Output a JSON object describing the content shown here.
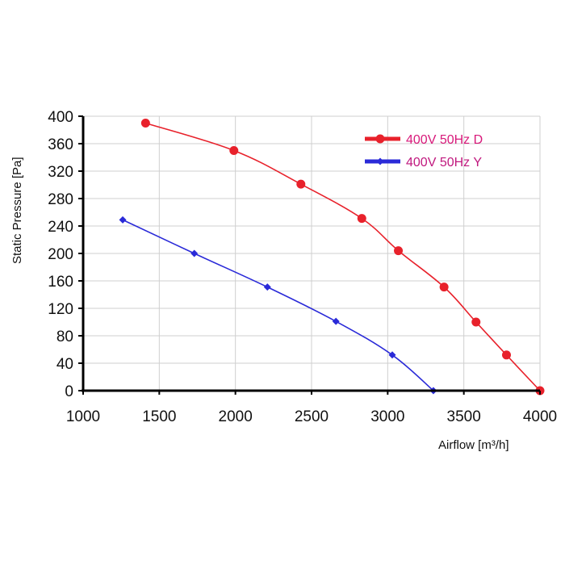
{
  "chart_data": {
    "type": "line",
    "xlabel": "Airflow [m³/h]",
    "ylabel": "Static Pressure [Pa]",
    "xlim": [
      1000,
      4000
    ],
    "ylim": [
      0,
      400
    ],
    "xticks": [
      1000,
      1500,
      2000,
      2500,
      3000,
      3500,
      4000
    ],
    "yticks": [
      0,
      40,
      80,
      120,
      160,
      200,
      240,
      280,
      320,
      360,
      400
    ],
    "grid": true,
    "legend_position": "top-right",
    "series": [
      {
        "name": "400V 50Hz D",
        "color": "#e8212b",
        "marker": "circle",
        "x": [
          1410,
          1990,
          2430,
          2830,
          3070,
          3370,
          3580,
          3780,
          4000
        ],
        "y": [
          390,
          350,
          301,
          251,
          204,
          151,
          100,
          52,
          0
        ]
      },
      {
        "name": "400V 50Hz Y",
        "color": "#2a2ad8",
        "marker": "diamond",
        "x": [
          1260,
          1730,
          2210,
          2660,
          3030,
          3300
        ],
        "y": [
          249,
          200,
          151,
          101,
          52,
          0
        ]
      }
    ]
  }
}
